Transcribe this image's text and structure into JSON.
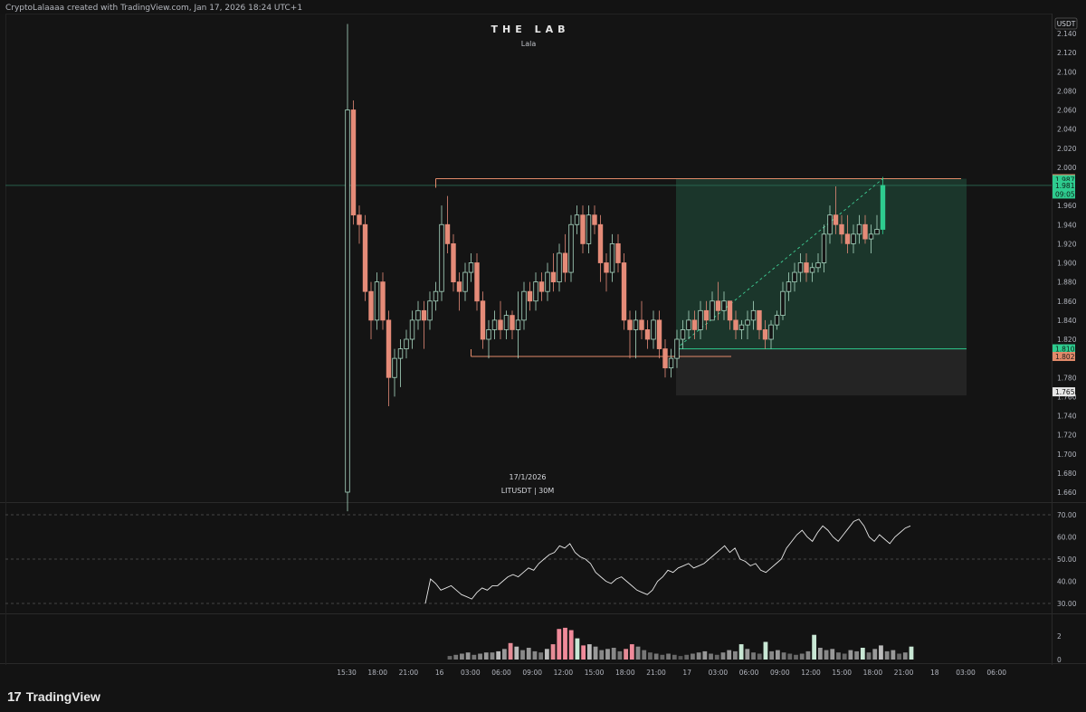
{
  "header": {
    "credit": "CryptoLalaaaa created with TradingView.com, Jan 17, 2026 18:24 UTC+1"
  },
  "watermark": {
    "title": "THE LAB",
    "subtitle": "Lala",
    "date": "17/1/2026",
    "symbol": "LITUSDT | 30M"
  },
  "footer": {
    "brand": "TradingView",
    "brand_mark": "17"
  },
  "colors": {
    "background": "#131313",
    "up": "#a9d8c2",
    "up_strong": "#2ecc8f",
    "down": "#e58b78",
    "long_zone": "#1c3a2e",
    "stop_zone": "#242424",
    "level_line": "#e28a6a",
    "grid": "#1c1c1c"
  },
  "chart_data": {
    "type": "candlestick",
    "symbol": "LITUSDT",
    "interval": "30M",
    "currency": "USDT",
    "price_range": [
      1.64,
      2.15
    ],
    "price_ticks": [
      "2.140",
      "2.120",
      "2.100",
      "2.080",
      "2.060",
      "2.040",
      "2.020",
      "2.000",
      "1.960",
      "1.940",
      "1.920",
      "1.900",
      "1.880",
      "1.860",
      "1.840",
      "1.820",
      "1.780",
      "1.760",
      "1.740",
      "1.720",
      "1.700",
      "1.680",
      "1.660"
    ],
    "price_labels": [
      {
        "text": "1.988",
        "value": 1.988,
        "kind": "level"
      },
      {
        "text": "1.987",
        "value": 1.987,
        "kind": "last"
      },
      {
        "text": "1.981",
        "value": 1.981,
        "kind": "last"
      },
      {
        "text": "09:05",
        "value": 1.972,
        "kind": "countdown"
      },
      {
        "text": "1.810",
        "value": 1.81,
        "kind": "entry"
      },
      {
        "text": "1.802",
        "value": 1.802,
        "kind": "level"
      },
      {
        "text": "1.765",
        "value": 1.765,
        "kind": "stop"
      }
    ],
    "time_labels": [
      "15:30",
      "18:00",
      "21:00",
      "16",
      "03:00",
      "06:00",
      "09:00",
      "12:00",
      "15:00",
      "18:00",
      "21:00",
      "17",
      "03:00",
      "06:00",
      "09:00",
      "12:00",
      "15:00",
      "18:00",
      "21:00",
      "18",
      "03:00",
      "06:00"
    ],
    "candles": [
      {
        "o": 1.66,
        "h": 2.15,
        "l": 1.64,
        "c": 2.06
      },
      {
        "o": 2.06,
        "h": 2.07,
        "l": 1.94,
        "c": 1.95
      },
      {
        "o": 1.95,
        "h": 1.96,
        "l": 1.92,
        "c": 1.94
      },
      {
        "o": 1.94,
        "h": 1.95,
        "l": 1.86,
        "c": 1.87
      },
      {
        "o": 1.87,
        "h": 1.88,
        "l": 1.82,
        "c": 1.84
      },
      {
        "o": 1.84,
        "h": 1.89,
        "l": 1.83,
        "c": 1.88
      },
      {
        "o": 1.88,
        "h": 1.89,
        "l": 1.83,
        "c": 1.84
      },
      {
        "o": 1.84,
        "h": 1.85,
        "l": 1.75,
        "c": 1.78
      },
      {
        "o": 1.78,
        "h": 1.81,
        "l": 1.76,
        "c": 1.8
      },
      {
        "o": 1.8,
        "h": 1.82,
        "l": 1.77,
        "c": 1.81
      },
      {
        "o": 1.81,
        "h": 1.83,
        "l": 1.8,
        "c": 1.82
      },
      {
        "o": 1.82,
        "h": 1.85,
        "l": 1.81,
        "c": 1.84
      },
      {
        "o": 1.84,
        "h": 1.86,
        "l": 1.83,
        "c": 1.85
      },
      {
        "o": 1.85,
        "h": 1.86,
        "l": 1.81,
        "c": 1.84
      },
      {
        "o": 1.84,
        "h": 1.87,
        "l": 1.83,
        "c": 1.86
      },
      {
        "o": 1.86,
        "h": 1.88,
        "l": 1.85,
        "c": 1.87
      },
      {
        "o": 1.87,
        "h": 1.96,
        "l": 1.86,
        "c": 1.94
      },
      {
        "o": 1.94,
        "h": 1.97,
        "l": 1.91,
        "c": 1.92
      },
      {
        "o": 1.92,
        "h": 1.93,
        "l": 1.87,
        "c": 1.88
      },
      {
        "o": 1.88,
        "h": 1.89,
        "l": 1.85,
        "c": 1.87
      },
      {
        "o": 1.87,
        "h": 1.9,
        "l": 1.86,
        "c": 1.89
      },
      {
        "o": 1.89,
        "h": 1.91,
        "l": 1.88,
        "c": 1.9
      },
      {
        "o": 1.9,
        "h": 1.91,
        "l": 1.85,
        "c": 1.86
      },
      {
        "o": 1.86,
        "h": 1.87,
        "l": 1.81,
        "c": 1.82
      },
      {
        "o": 1.82,
        "h": 1.84,
        "l": 1.8,
        "c": 1.83
      },
      {
        "o": 1.83,
        "h": 1.85,
        "l": 1.82,
        "c": 1.84
      },
      {
        "o": 1.84,
        "h": 1.86,
        "l": 1.82,
        "c": 1.83
      },
      {
        "o": 1.83,
        "h": 1.85,
        "l": 1.82,
        "c": 1.845
      },
      {
        "o": 1.845,
        "h": 1.85,
        "l": 1.82,
        "c": 1.83
      },
      {
        "o": 1.83,
        "h": 1.87,
        "l": 1.8,
        "c": 1.84
      },
      {
        "o": 1.84,
        "h": 1.88,
        "l": 1.83,
        "c": 1.87
      },
      {
        "o": 1.87,
        "h": 1.88,
        "l": 1.85,
        "c": 1.86
      },
      {
        "o": 1.86,
        "h": 1.89,
        "l": 1.85,
        "c": 1.88
      },
      {
        "o": 1.88,
        "h": 1.89,
        "l": 1.86,
        "c": 1.87
      },
      {
        "o": 1.87,
        "h": 1.9,
        "l": 1.86,
        "c": 1.89
      },
      {
        "o": 1.89,
        "h": 1.91,
        "l": 1.87,
        "c": 1.88
      },
      {
        "o": 1.88,
        "h": 1.92,
        "l": 1.87,
        "c": 1.91
      },
      {
        "o": 1.91,
        "h": 1.93,
        "l": 1.88,
        "c": 1.89
      },
      {
        "o": 1.89,
        "h": 1.95,
        "l": 1.88,
        "c": 1.94
      },
      {
        "o": 1.94,
        "h": 1.96,
        "l": 1.93,
        "c": 1.95
      },
      {
        "o": 1.95,
        "h": 1.96,
        "l": 1.91,
        "c": 1.92
      },
      {
        "o": 1.92,
        "h": 1.96,
        "l": 1.91,
        "c": 1.95
      },
      {
        "o": 1.95,
        "h": 1.96,
        "l": 1.93,
        "c": 1.94
      },
      {
        "o": 1.94,
        "h": 1.95,
        "l": 1.88,
        "c": 1.9
      },
      {
        "o": 1.9,
        "h": 1.91,
        "l": 1.87,
        "c": 1.89
      },
      {
        "o": 1.89,
        "h": 1.93,
        "l": 1.88,
        "c": 1.92
      },
      {
        "o": 1.92,
        "h": 1.93,
        "l": 1.89,
        "c": 1.9
      },
      {
        "o": 1.9,
        "h": 1.91,
        "l": 1.83,
        "c": 1.84
      },
      {
        "o": 1.84,
        "h": 1.85,
        "l": 1.8,
        "c": 1.83
      },
      {
        "o": 1.83,
        "h": 1.85,
        "l": 1.8,
        "c": 1.84
      },
      {
        "o": 1.84,
        "h": 1.86,
        "l": 1.82,
        "c": 1.83
      },
      {
        "o": 1.83,
        "h": 1.84,
        "l": 1.81,
        "c": 1.82
      },
      {
        "o": 1.82,
        "h": 1.85,
        "l": 1.81,
        "c": 1.84
      },
      {
        "o": 1.84,
        "h": 1.85,
        "l": 1.8,
        "c": 1.81
      },
      {
        "o": 1.81,
        "h": 1.82,
        "l": 1.78,
        "c": 1.79
      },
      {
        "o": 1.79,
        "h": 1.81,
        "l": 1.78,
        "c": 1.8
      },
      {
        "o": 1.8,
        "h": 1.83,
        "l": 1.79,
        "c": 1.82
      },
      {
        "o": 1.82,
        "h": 1.84,
        "l": 1.81,
        "c": 1.83
      },
      {
        "o": 1.83,
        "h": 1.85,
        "l": 1.82,
        "c": 1.84
      },
      {
        "o": 1.84,
        "h": 1.85,
        "l": 1.82,
        "c": 1.83
      },
      {
        "o": 1.83,
        "h": 1.86,
        "l": 1.82,
        "c": 1.85
      },
      {
        "o": 1.85,
        "h": 1.86,
        "l": 1.83,
        "c": 1.84
      },
      {
        "o": 1.84,
        "h": 1.87,
        "l": 1.84,
        "c": 1.86
      },
      {
        "o": 1.86,
        "h": 1.88,
        "l": 1.84,
        "c": 1.85
      },
      {
        "o": 1.85,
        "h": 1.87,
        "l": 1.84,
        "c": 1.86
      },
      {
        "o": 1.86,
        "h": 1.86,
        "l": 1.83,
        "c": 1.84
      },
      {
        "o": 1.84,
        "h": 1.85,
        "l": 1.82,
        "c": 1.83
      },
      {
        "o": 1.83,
        "h": 1.84,
        "l": 1.82,
        "c": 1.835
      },
      {
        "o": 1.835,
        "h": 1.85,
        "l": 1.82,
        "c": 1.84
      },
      {
        "o": 1.84,
        "h": 1.86,
        "l": 1.83,
        "c": 1.85
      },
      {
        "o": 1.85,
        "h": 1.85,
        "l": 1.82,
        "c": 1.83
      },
      {
        "o": 1.83,
        "h": 1.84,
        "l": 1.81,
        "c": 1.82
      },
      {
        "o": 1.82,
        "h": 1.84,
        "l": 1.81,
        "c": 1.835
      },
      {
        "o": 1.835,
        "h": 1.85,
        "l": 1.83,
        "c": 1.845
      },
      {
        "o": 1.845,
        "h": 1.88,
        "l": 1.84,
        "c": 1.87
      },
      {
        "o": 1.87,
        "h": 1.89,
        "l": 1.86,
        "c": 1.88
      },
      {
        "o": 1.88,
        "h": 1.9,
        "l": 1.87,
        "c": 1.89
      },
      {
        "o": 1.89,
        "h": 1.91,
        "l": 1.88,
        "c": 1.9
      },
      {
        "o": 1.9,
        "h": 1.91,
        "l": 1.88,
        "c": 1.89
      },
      {
        "o": 1.89,
        "h": 1.9,
        "l": 1.88,
        "c": 1.895
      },
      {
        "o": 1.895,
        "h": 1.91,
        "l": 1.89,
        "c": 1.9
      },
      {
        "o": 1.9,
        "h": 1.94,
        "l": 1.89,
        "c": 1.93
      },
      {
        "o": 1.93,
        "h": 1.96,
        "l": 1.92,
        "c": 1.95
      },
      {
        "o": 1.95,
        "h": 1.98,
        "l": 1.93,
        "c": 1.94
      },
      {
        "o": 1.94,
        "h": 1.95,
        "l": 1.92,
        "c": 1.93
      },
      {
        "o": 1.93,
        "h": 1.95,
        "l": 1.91,
        "c": 1.92
      },
      {
        "o": 1.92,
        "h": 1.94,
        "l": 1.91,
        "c": 1.93
      },
      {
        "o": 1.93,
        "h": 1.95,
        "l": 1.92,
        "c": 1.94
      },
      {
        "o": 1.94,
        "h": 1.95,
        "l": 1.92,
        "c": 1.925
      },
      {
        "o": 1.925,
        "h": 1.94,
        "l": 1.91,
        "c": 1.93
      },
      {
        "o": 1.93,
        "h": 1.95,
        "l": 1.93,
        "c": 1.935
      },
      {
        "o": 1.935,
        "h": 1.99,
        "l": 1.93,
        "c": 1.981
      }
    ],
    "rsi": {
      "levels": [
        70,
        50,
        30
      ],
      "range": [
        25,
        75
      ],
      "ticks": [
        "70.00",
        "60.00",
        "50.00",
        "40.00",
        "30.00"
      ],
      "values": [
        30,
        41,
        39,
        36,
        37,
        38,
        36,
        34,
        33,
        32,
        35,
        37,
        36,
        38,
        38,
        40,
        42,
        43,
        42,
        44,
        46,
        45,
        48,
        50,
        52,
        53,
        56,
        55,
        57,
        53,
        51,
        50,
        48,
        44,
        42,
        40,
        39,
        41,
        42,
        40,
        38,
        36,
        35,
        34,
        36,
        40,
        42,
        45,
        44,
        46,
        47,
        48,
        46,
        47,
        48,
        50,
        52,
        54,
        56,
        53,
        55,
        50,
        49,
        47,
        48,
        45,
        44,
        46,
        48,
        50,
        55,
        58,
        61,
        63,
        60,
        58,
        62,
        65,
        63,
        60,
        58,
        61,
        64,
        67,
        68,
        65,
        60,
        58,
        61,
        59,
        57,
        60,
        62,
        64,
        65
      ]
    },
    "volume": {
      "ticks": [
        "2",
        "0"
      ],
      "range": [
        0,
        3
      ],
      "values": [
        0.3,
        0.4,
        0.5,
        0.6,
        0.4,
        0.5,
        0.6,
        0.6,
        0.7,
        0.9,
        1.4,
        1.1,
        0.8,
        1.0,
        0.7,
        0.6,
        0.9,
        1.3,
        2.6,
        2.7,
        2.5,
        1.8,
        1.2,
        1.3,
        1.1,
        0.8,
        0.9,
        1.0,
        0.7,
        0.9,
        1.3,
        1.1,
        0.8,
        0.6,
        0.5,
        0.4,
        0.5,
        0.4,
        0.3,
        0.4,
        0.5,
        0.6,
        0.7,
        0.5,
        0.4,
        0.6,
        0.8,
        0.7,
        1.3,
        0.9,
        0.6,
        0.5,
        1.5,
        0.7,
        0.8,
        0.6,
        0.5,
        0.4,
        0.5,
        0.7,
        2.1,
        1.0,
        0.8,
        0.9,
        0.6,
        0.5,
        0.8,
        0.7,
        1.0,
        0.6,
        0.9,
        1.2,
        0.7,
        0.8,
        0.5,
        0.6,
        1.1
      ],
      "colors": [
        "#666",
        "#777",
        "#888",
        "#999",
        "#777",
        "#888",
        "#999",
        "#888",
        "#bbb",
        "#999",
        "#e58b96",
        "#bbb",
        "#888",
        "#999",
        "#888",
        "#777",
        "#bbb",
        "#e58b96",
        "#f08a9a",
        "#f08a9a",
        "#f08a9a",
        "#c8e7d4",
        "#f08a9a",
        "#bbb",
        "#999",
        "#888",
        "#999",
        "#888",
        "#777",
        "#e58b96",
        "#f08a9a",
        "#888",
        "#777",
        "#666",
        "#777",
        "#666",
        "#777",
        "#666",
        "#555",
        "#666",
        "#777",
        "#888",
        "#999",
        "#777",
        "#666",
        "#888",
        "#999",
        "#888",
        "#c8e7d4",
        "#999",
        "#777",
        "#666",
        "#c8e7d4",
        "#888",
        "#999",
        "#777",
        "#666",
        "#666",
        "#777",
        "#888",
        "#c8e7d4",
        "#999",
        "#888",
        "#999",
        "#777",
        "#666",
        "#999",
        "#888",
        "#c8e7d4",
        "#777",
        "#999",
        "#bbb",
        "#888",
        "#999",
        "#666",
        "#888",
        "#c8e7d4"
      ]
    },
    "annotations": {
      "resistance_level": 1.988,
      "support_level": 1.802,
      "entry_level": 1.81,
      "stop_level": 1.765
    }
  }
}
